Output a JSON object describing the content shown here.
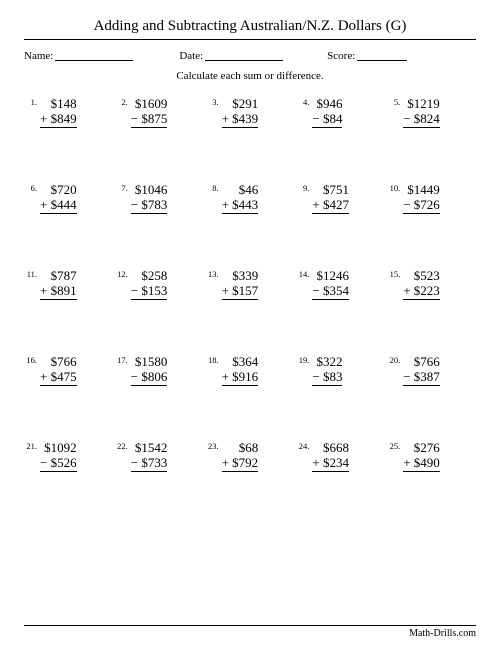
{
  "title": "Adding and Subtracting Australian/N.Z. Dollars (G)",
  "labels": {
    "name": "Name:",
    "date": "Date:",
    "score": "Score:"
  },
  "instruction": "Calculate each sum or difference.",
  "footer": "Math-Drills.com",
  "currency": "$",
  "problems": [
    {
      "n": "1.",
      "a": 148,
      "b": 849,
      "op": "+"
    },
    {
      "n": "2.",
      "a": 1609,
      "b": 875,
      "op": "−"
    },
    {
      "n": "3.",
      "a": 291,
      "b": 439,
      "op": "+"
    },
    {
      "n": "4.",
      "a": 946,
      "b": 84,
      "op": "−"
    },
    {
      "n": "5.",
      "a": 1219,
      "b": 824,
      "op": "−"
    },
    {
      "n": "6.",
      "a": 720,
      "b": 444,
      "op": "+"
    },
    {
      "n": "7.",
      "a": 1046,
      "b": 783,
      "op": "−"
    },
    {
      "n": "8.",
      "a": 46,
      "b": 443,
      "op": "+"
    },
    {
      "n": "9.",
      "a": 751,
      "b": 427,
      "op": "+"
    },
    {
      "n": "10.",
      "a": 1449,
      "b": 726,
      "op": "−"
    },
    {
      "n": "11.",
      "a": 787,
      "b": 891,
      "op": "+"
    },
    {
      "n": "12.",
      "a": 258,
      "b": 153,
      "op": "−"
    },
    {
      "n": "13.",
      "a": 339,
      "b": 157,
      "op": "+"
    },
    {
      "n": "14.",
      "a": 1246,
      "b": 354,
      "op": "−"
    },
    {
      "n": "15.",
      "a": 523,
      "b": 223,
      "op": "+"
    },
    {
      "n": "16.",
      "a": 766,
      "b": 475,
      "op": "+"
    },
    {
      "n": "17.",
      "a": 1580,
      "b": 806,
      "op": "−"
    },
    {
      "n": "18.",
      "a": 364,
      "b": 916,
      "op": "+"
    },
    {
      "n": "19.",
      "a": 322,
      "b": 83,
      "op": "−"
    },
    {
      "n": "20.",
      "a": 766,
      "b": 387,
      "op": "−"
    },
    {
      "n": "21.",
      "a": 1092,
      "b": 526,
      "op": "−"
    },
    {
      "n": "22.",
      "a": 1542,
      "b": 733,
      "op": "−"
    },
    {
      "n": "23.",
      "a": 68,
      "b": 792,
      "op": "+"
    },
    {
      "n": "24.",
      "a": 668,
      "b": 234,
      "op": "+"
    },
    {
      "n": "25.",
      "a": 276,
      "b": 490,
      "op": "+"
    }
  ]
}
